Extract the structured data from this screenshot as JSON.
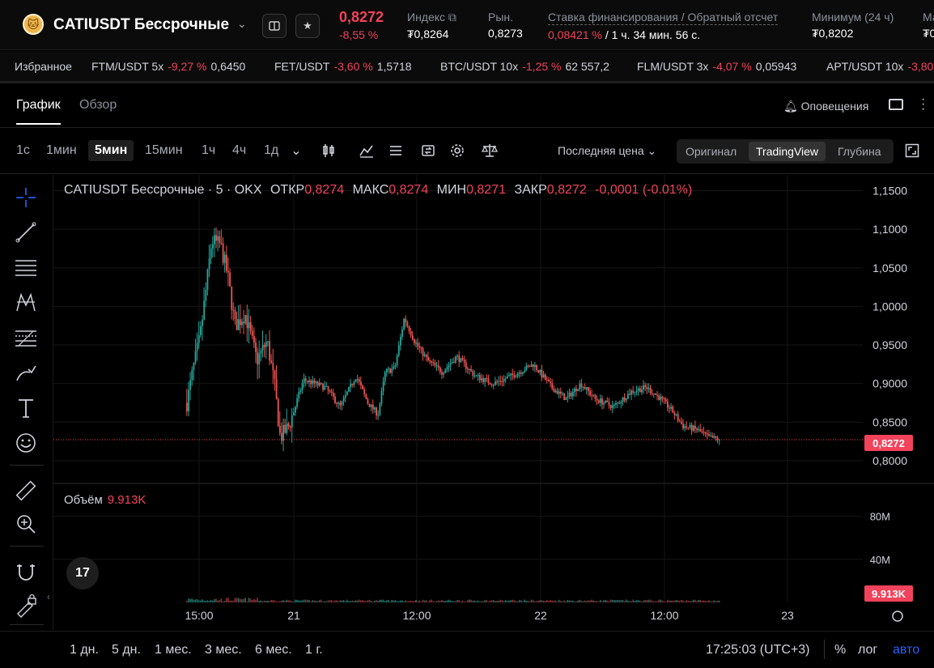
{
  "header": {
    "logo_glyph": "🐱",
    "pair": "CATIUSDT Бессрочные",
    "last_price": "0,8272",
    "change_pct": "-8,55 %",
    "stats": [
      {
        "label": "Индекс",
        "value": "₮0,8264"
      },
      {
        "label": "Рын.",
        "value": "0,8273"
      },
      {
        "label": "Ставка финансирования / Обратный отсчет",
        "value_rate": "0,08421 %",
        "value_rest": " / 1 ч. 34 мин. 56 с."
      },
      {
        "label": "Минимум (24 ч)",
        "value": "₮0,8202"
      },
      {
        "label": "Ма",
        "value": "₮0"
      }
    ]
  },
  "ticker": {
    "favorites_label": "Избранное",
    "items": [
      {
        "symbol": "FTM/USDT 5x",
        "change": "-9,27 %",
        "price": "0,6450"
      },
      {
        "symbol": "FET/USDT",
        "change": "-3,60 %",
        "price": "1,5718"
      },
      {
        "symbol": "BTC/USDT 10x",
        "change": "-1,25 %",
        "price": "62 557,2"
      },
      {
        "symbol": "FLM/USDT 3x",
        "change": "-4,07 %",
        "price": "0,05943"
      },
      {
        "symbol": "APT/USDT 10x",
        "change": "-3,80",
        "price": ""
      }
    ]
  },
  "tabs": {
    "chart": "График",
    "overview": "Обзор",
    "alerts": "Оповещения"
  },
  "toolbar": {
    "timeframes": [
      "1с",
      "1мин",
      "5мин",
      "15мин",
      "1ч",
      "4ч",
      "1д"
    ],
    "active_timeframe": "5мин",
    "price_type": "Последняя цена",
    "views": [
      "Оригинал",
      "TradingView",
      "Глубина"
    ],
    "active_view": "TradingView"
  },
  "legend": {
    "title": "CATIUSDT Бессрочные · 5 · OKX",
    "open_label": "ОТКР",
    "open": "0,8274",
    "high_label": "МАКС",
    "high": "0,8274",
    "low_label": "МИН",
    "low": "0,8271",
    "close_label": "ЗАКР",
    "close": "0,8272",
    "change": "-0,0001 (-0.01%)"
  },
  "volume_legend": {
    "label": "Объём",
    "value": "9.913K"
  },
  "price_tag": "0,8272",
  "volume_tag": "9.913K",
  "tv_logo": "17",
  "chart_data": {
    "type": "candlestick",
    "price_axis": {
      "ticks": [
        "1,1500",
        "1,1000",
        "1,0500",
        "1,0000",
        "0,9500",
        "0,9000",
        "0,8500",
        "0,8000"
      ],
      "tick_values": [
        1.15,
        1.1,
        1.05,
        1.0,
        0.95,
        0.9,
        0.85,
        0.8
      ],
      "ylim": [
        0.78,
        1.16
      ]
    },
    "volume_axis": {
      "ticks": [
        "80M",
        "40M"
      ],
      "tick_values": [
        80,
        40
      ],
      "ylim": [
        0,
        100
      ]
    },
    "time_axis": {
      "ticks": [
        "15:00",
        "21",
        "12:00",
        "22",
        "12:00",
        "23"
      ]
    },
    "last_price": 0.8272,
    "price_path": [
      {
        "t": 0.0,
        "p": 0.875
      },
      {
        "t": 0.01,
        "p": 0.925
      },
      {
        "t": 0.018,
        "p": 0.96
      },
      {
        "t": 0.026,
        "p": 1.02
      },
      {
        "t": 0.034,
        "p": 1.085
      },
      {
        "t": 0.046,
        "p": 1.08
      },
      {
        "t": 0.056,
        "p": 1.04
      },
      {
        "t": 0.066,
        "p": 0.975
      },
      {
        "t": 0.08,
        "p": 0.99
      },
      {
        "t": 0.096,
        "p": 0.93
      },
      {
        "t": 0.11,
        "p": 0.955
      },
      {
        "t": 0.12,
        "p": 0.9
      },
      {
        "t": 0.128,
        "p": 0.83
      },
      {
        "t": 0.14,
        "p": 0.845
      },
      {
        "t": 0.16,
        "p": 0.905
      },
      {
        "t": 0.19,
        "p": 0.895
      },
      {
        "t": 0.21,
        "p": 0.87
      },
      {
        "t": 0.232,
        "p": 0.91
      },
      {
        "t": 0.248,
        "p": 0.875
      },
      {
        "t": 0.262,
        "p": 0.86
      },
      {
        "t": 0.272,
        "p": 0.915
      },
      {
        "t": 0.285,
        "p": 0.92
      },
      {
        "t": 0.298,
        "p": 0.985
      },
      {
        "t": 0.312,
        "p": 0.955
      },
      {
        "t": 0.33,
        "p": 0.93
      },
      {
        "t": 0.35,
        "p": 0.915
      },
      {
        "t": 0.37,
        "p": 0.935
      },
      {
        "t": 0.395,
        "p": 0.91
      },
      {
        "t": 0.42,
        "p": 0.9
      },
      {
        "t": 0.45,
        "p": 0.912
      },
      {
        "t": 0.475,
        "p": 0.925
      },
      {
        "t": 0.5,
        "p": 0.895
      },
      {
        "t": 0.52,
        "p": 0.88
      },
      {
        "t": 0.54,
        "p": 0.9
      },
      {
        "t": 0.56,
        "p": 0.88
      },
      {
        "t": 0.585,
        "p": 0.87
      },
      {
        "t": 0.61,
        "p": 0.89
      },
      {
        "t": 0.63,
        "p": 0.895
      },
      {
        "t": 0.65,
        "p": 0.88
      },
      {
        "t": 0.665,
        "p": 0.865
      },
      {
        "t": 0.68,
        "p": 0.845
      },
      {
        "t": 0.7,
        "p": 0.84
      },
      {
        "t": 0.715,
        "p": 0.83
      },
      {
        "t": 0.73,
        "p": 0.828
      }
    ]
  }
}
